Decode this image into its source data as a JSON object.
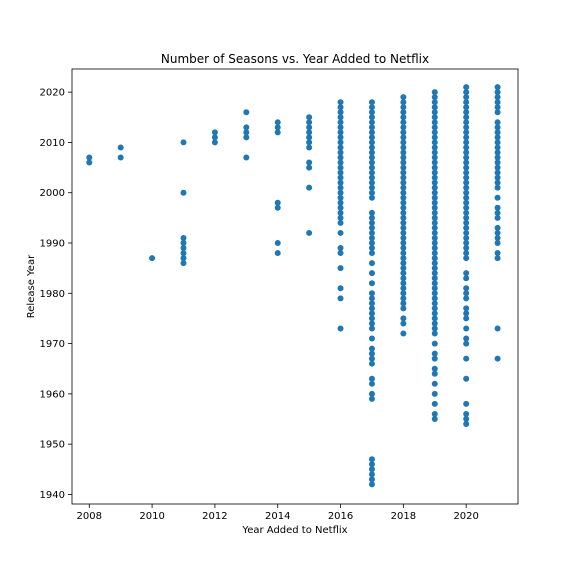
{
  "chart_data": {
    "type": "scatter",
    "title": "Number of Seasons vs. Year Added to Netflix",
    "xlabel": "Year Added to Netflix",
    "ylabel": "Release Year",
    "xlim": [
      2007.45,
      2021.65
    ],
    "ylim": [
      1938.1,
      2024.6
    ],
    "xticks": [
      2008,
      2010,
      2012,
      2014,
      2016,
      2018,
      2020
    ],
    "yticks": [
      1940,
      1950,
      1960,
      1970,
      1980,
      1990,
      2000,
      2010,
      2020
    ],
    "grid": false,
    "marker_color": "#1f77b4",
    "points": [
      {
        "x": 2008,
        "y": [
          2006,
          2007
        ]
      },
      {
        "x": 2009,
        "y": [
          2007,
          2009
        ]
      },
      {
        "x": 2010,
        "y": [
          1987
        ]
      },
      {
        "x": 2011,
        "y": [
          1986,
          1987,
          1988,
          1989,
          1990,
          1991,
          2000,
          2010
        ]
      },
      {
        "x": 2012,
        "y": [
          2010,
          2011,
          2012
        ]
      },
      {
        "x": 2013,
        "y": [
          2007,
          2011,
          2012,
          2013,
          2016
        ]
      },
      {
        "x": 2014,
        "y": [
          1988,
          1990,
          1997,
          1998,
          2012,
          2013,
          2014
        ]
      },
      {
        "x": 2015,
        "y": [
          1992,
          2001,
          2005,
          2006,
          2009,
          2010,
          2011,
          2012,
          2013,
          2014,
          2015
        ]
      },
      {
        "x": 2016,
        "y": [
          1973,
          1979,
          1981,
          1985,
          1988,
          1989,
          1992,
          {
            "from": 1994,
            "to": 2018
          }
        ]
      },
      {
        "x": 2017,
        "y": [
          1942,
          1943,
          1944,
          1945,
          1946,
          1947,
          1959,
          1960,
          1962,
          1963,
          1966,
          1967,
          1968,
          1969,
          1971,
          {
            "from": 1973,
            "to": 1980
          },
          1982,
          1984,
          1986,
          {
            "from": 1988,
            "to": 1996
          },
          {
            "from": 1999,
            "to": 2018
          }
        ]
      },
      {
        "x": 2018,
        "y": [
          1972,
          1974,
          1975,
          {
            "from": 1977,
            "to": 2019
          }
        ]
      },
      {
        "x": 2019,
        "y": [
          1955,
          1956,
          1958,
          1960,
          1962,
          1964,
          1965,
          1967,
          1968,
          1970,
          {
            "from": 1972,
            "to": 2020
          }
        ]
      },
      {
        "x": 2020,
        "y": [
          1954,
          1955,
          1956,
          1958,
          1963,
          1967,
          1970,
          1971,
          1973,
          1975,
          1976,
          1977,
          1979,
          1980,
          1981,
          1983,
          1984,
          {
            "from": 1987,
            "to": 2021
          }
        ]
      },
      {
        "x": 2021,
        "y": [
          1967,
          1973,
          1987,
          1988,
          1990,
          1991,
          1992,
          1993,
          1995,
          1996,
          1997,
          1999,
          {
            "from": 2001,
            "to": 2014
          },
          {
            "from": 2016,
            "to": 2021
          }
        ]
      }
    ]
  }
}
